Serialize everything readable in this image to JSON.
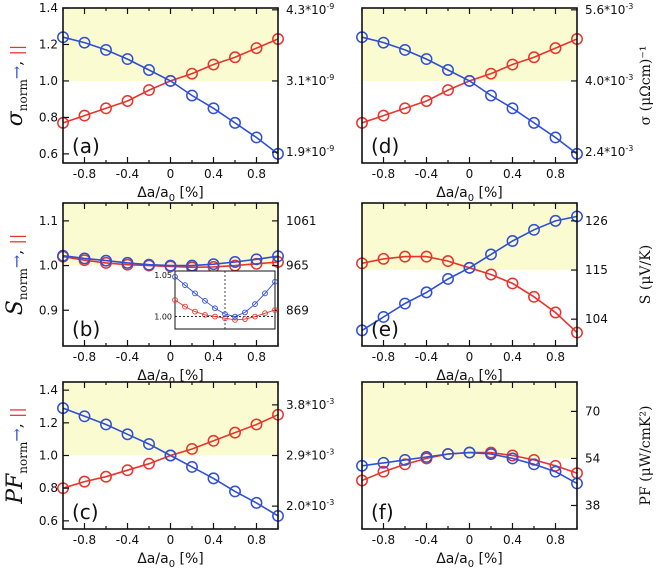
{
  "colors": {
    "red": "#e8342c",
    "blue": "#2f4fd6",
    "band": "#fbfbd2",
    "axis": "#111111"
  },
  "chart_data": [
    {
      "panel": "(a)",
      "type": "line",
      "ylabel_left": "σ_norm →, ||",
      "ylabel_right": "",
      "xlabel": "Δa/a0 [%]",
      "x": [
        -1.0,
        -0.8,
        -0.6,
        -0.4,
        -0.2,
        0.0,
        0.2,
        0.4,
        0.6,
        0.8,
        1.0
      ],
      "xlim": [
        -1.0,
        1.0
      ],
      "ylim": [
        0.55,
        1.4
      ],
      "xticks": [
        "-0.8",
        "-0.4",
        "0",
        "0.4",
        "0.8"
      ],
      "xtick_values": [
        -0.8,
        -0.4,
        0,
        0.4,
        0.8
      ],
      "yticks": [
        "0.6",
        "0.8",
        "1.0",
        "1.2",
        "1.4"
      ],
      "ytick_values": [
        0.6,
        0.8,
        1.0,
        1.2,
        1.4
      ],
      "rticks": [
        "4.3*10^-9",
        "3.1*10^-9",
        "1.9*10^-9"
      ],
      "rtick_values": [
        1.39,
        1.0,
        0.61
      ],
      "band": [
        1.0,
        1.4
      ],
      "series": [
        {
          "name": "parallel",
          "color": "red",
          "values": [
            0.77,
            0.81,
            0.85,
            0.89,
            0.95,
            1.0,
            1.04,
            1.09,
            1.13,
            1.18,
            1.23
          ]
        },
        {
          "name": "perpendicular",
          "color": "blue",
          "values": [
            1.24,
            1.21,
            1.17,
            1.12,
            1.06,
            1.0,
            0.92,
            0.85,
            0.77,
            0.69,
            0.6
          ]
        }
      ]
    },
    {
      "panel": "(d)",
      "type": "line",
      "ylabel_left": "",
      "ylabel_right": "σ (μΩcm)⁻¹",
      "xlabel": "Δa/a0 [%]",
      "x": [
        -1.0,
        -0.8,
        -0.6,
        -0.4,
        -0.2,
        0.0,
        0.2,
        0.4,
        0.6,
        0.8,
        1.0
      ],
      "xlim": [
        -1.0,
        1.0
      ],
      "ylim": [
        0.55,
        1.4
      ],
      "xticks": [
        "-0.8",
        "-0.4",
        "0",
        "0.4",
        "0.8"
      ],
      "xtick_values": [
        -0.8,
        -0.4,
        0,
        0.4,
        0.8
      ],
      "yticks": [],
      "ytick_values": [],
      "rticks": [
        "5.6*10^-3",
        "4.0*10^-3",
        "2.4*10^-3"
      ],
      "rtick_values": [
        1.39,
        1.0,
        0.61
      ],
      "band": [
        1.0,
        1.4
      ],
      "series": [
        {
          "name": "parallel",
          "color": "red",
          "values": [
            0.77,
            0.81,
            0.85,
            0.89,
            0.95,
            1.0,
            1.04,
            1.09,
            1.13,
            1.18,
            1.23
          ]
        },
        {
          "name": "perpendicular",
          "color": "blue",
          "values": [
            1.24,
            1.21,
            1.17,
            1.12,
            1.06,
            1.0,
            0.92,
            0.85,
            0.77,
            0.69,
            0.6
          ]
        }
      ]
    },
    {
      "panel": "(b)",
      "type": "line",
      "ylabel_left": "S_norm →, ||",
      "ylabel_right": "",
      "xlabel": "Δa/a0 [%]",
      "x": [
        -1.0,
        -0.8,
        -0.6,
        -0.4,
        -0.2,
        0.0,
        0.2,
        0.4,
        0.6,
        0.8,
        1.0
      ],
      "xlim": [
        -1.0,
        1.0
      ],
      "ylim": [
        0.82,
        1.14
      ],
      "xticks": [
        "-0.8",
        "-0.4",
        "0",
        "0.4",
        "0.8"
      ],
      "xtick_values": [
        -0.8,
        -0.4,
        0,
        0.4,
        0.8
      ],
      "yticks": [
        "0.9",
        "1.0",
        "1.1"
      ],
      "ytick_values": [
        0.9,
        1.0,
        1.1
      ],
      "rticks": [
        "1061",
        "965",
        "869"
      ],
      "rtick_values": [
        1.1,
        1.0,
        0.9
      ],
      "band": [
        1.0,
        1.14
      ],
      "series": [
        {
          "name": "parallel",
          "color": "red",
          "values": [
            1.02,
            1.012,
            1.006,
            1.002,
            1.0,
            0.998,
            0.996,
            0.997,
            1.0,
            1.004,
            1.008
          ]
        },
        {
          "name": "perpendicular",
          "color": "blue",
          "values": [
            1.022,
            1.016,
            1.011,
            1.006,
            1.002,
            1.0,
            1.0,
            1.003,
            1.008,
            1.014,
            1.021
          ]
        }
      ],
      "inset": {
        "ylim": [
          0.985,
          1.055
        ],
        "yticks": [
          "1.00",
          "1.05"
        ],
        "ytick_values": [
          1.0,
          1.05
        ],
        "series": [
          {
            "name": "parallel",
            "color": "red",
            "values": [
              1.02,
              1.012,
              1.006,
              1.002,
              1.0,
              0.998,
              0.996,
              0.997,
              1.0,
              1.004,
              1.008
            ]
          },
          {
            "name": "perpendicular",
            "color": "blue",
            "values": [
              1.048,
              1.038,
              1.028,
              1.019,
              1.01,
              1.003,
              1.0,
              1.005,
              1.015,
              1.028,
              1.042
            ]
          }
        ]
      }
    },
    {
      "panel": "(e)",
      "type": "line",
      "ylabel_left": "",
      "ylabel_right": "S (μV/K)",
      "xlabel": "Δa/a0 [%]",
      "x": [
        -1.0,
        -0.8,
        -0.6,
        -0.4,
        -0.2,
        0.0,
        0.2,
        0.4,
        0.6,
        0.8,
        1.0
      ],
      "xlim": [
        -1.0,
        1.0
      ],
      "ylim": [
        98,
        130
      ],
      "xticks": [
        "-0.8",
        "-0.4",
        "0",
        "0.4",
        "0.8"
      ],
      "xtick_values": [
        -0.8,
        -0.4,
        0,
        0.4,
        0.8
      ],
      "yticks": [],
      "ytick_values": [],
      "rticks": [
        "126",
        "115",
        "104"
      ],
      "rtick_values": [
        126,
        115,
        104
      ],
      "band": [
        115,
        130
      ],
      "series": [
        {
          "name": "parallel",
          "color": "red",
          "values": [
            116.5,
            117.5,
            118.0,
            118.0,
            117.0,
            115.5,
            114.0,
            112.0,
            109.0,
            105.5,
            101.0
          ]
        },
        {
          "name": "perpendicular",
          "color": "blue",
          "values": [
            101.5,
            104.5,
            107.5,
            110.0,
            113.0,
            115.5,
            118.5,
            121.5,
            124.0,
            126.0,
            127.0
          ]
        }
      ]
    },
    {
      "panel": "(c)",
      "type": "line",
      "ylabel_left": "PF_norm →, ||",
      "ylabel_right": "",
      "xlabel": "Δa/a0 [%]",
      "x": [
        -1.0,
        -0.8,
        -0.6,
        -0.4,
        -0.2,
        0.0,
        0.2,
        0.4,
        0.6,
        0.8,
        1.0
      ],
      "xlim": [
        -1.0,
        1.0
      ],
      "ylim": [
        0.55,
        1.45
      ],
      "xticks": [
        "-0.8",
        "-0.4",
        "0",
        "0.4",
        "0.8"
      ],
      "xtick_values": [
        -0.8,
        -0.4,
        0,
        0.4,
        0.8
      ],
      "yticks": [
        "0.6",
        "0.8",
        "1.0",
        "1.2",
        "1.4"
      ],
      "ytick_values": [
        0.6,
        0.8,
        1.0,
        1.2,
        1.4
      ],
      "rticks": [
        "3.8*10^-3",
        "2.9*10^-3",
        "2.0*10^-3"
      ],
      "rtick_values": [
        1.31,
        1.0,
        0.69
      ],
      "band": [
        1.0,
        1.45
      ],
      "series": [
        {
          "name": "parallel",
          "color": "red",
          "values": [
            0.8,
            0.84,
            0.87,
            0.91,
            0.95,
            1.0,
            1.04,
            1.09,
            1.14,
            1.19,
            1.25
          ]
        },
        {
          "name": "perpendicular",
          "color": "blue",
          "values": [
            1.29,
            1.24,
            1.19,
            1.13,
            1.07,
            1.0,
            0.93,
            0.86,
            0.78,
            0.71,
            0.63
          ]
        }
      ]
    },
    {
      "panel": "(f)",
      "type": "line",
      "ylabel_left": "",
      "ylabel_right": "PF (μW/cmK²)",
      "xlabel": "Δa/a0 [%]",
      "x": [
        -1.0,
        -0.8,
        -0.6,
        -0.4,
        -0.2,
        0.0,
        0.2,
        0.4,
        0.6,
        0.8,
        1.0
      ],
      "xlim": [
        -1.0,
        1.0
      ],
      "ylim": [
        30,
        80
      ],
      "xticks": [
        "-0.8",
        "-0.4",
        "0",
        "0.4",
        "0.8"
      ],
      "xtick_values": [
        -0.8,
        -0.4,
        0,
        0.4,
        0.8
      ],
      "yticks": [],
      "ytick_values": [],
      "rticks": [
        "70",
        "54",
        "38"
      ],
      "rtick_values": [
        70,
        54,
        38
      ],
      "band": [
        54,
        80
      ],
      "series": [
        {
          "name": "parallel",
          "color": "red",
          "values": [
            46.5,
            49.5,
            52.0,
            54.0,
            55.5,
            56.0,
            56.0,
            55.0,
            53.5,
            51.5,
            49.0
          ]
        },
        {
          "name": "perpendicular",
          "color": "blue",
          "values": [
            51.5,
            52.5,
            53.5,
            54.5,
            55.5,
            56.0,
            55.5,
            54.0,
            52.0,
            49.5,
            45.5
          ]
        }
      ]
    }
  ]
}
